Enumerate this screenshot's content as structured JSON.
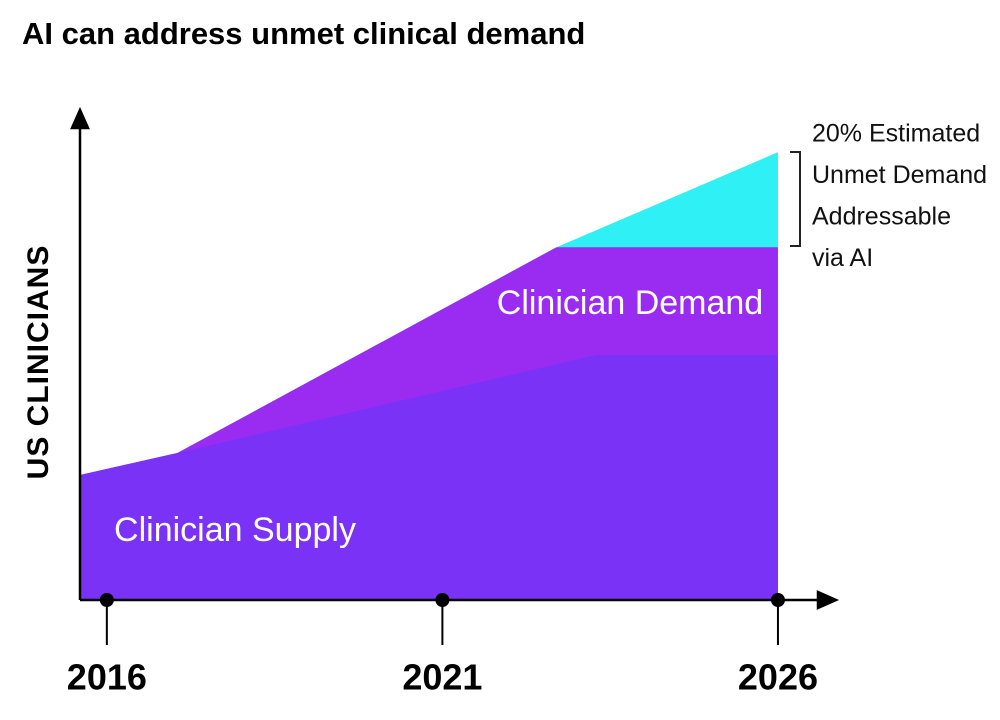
{
  "chart_data": {
    "type": "area",
    "title": "AI can address unmet clinical demand",
    "y_label": "US CLINICIANS",
    "x": [
      2015.6,
      2017.05,
      2022.7,
      2023.3,
      2026
    ],
    "xlim": [
      2015.6,
      2026.85
    ],
    "xticks": [
      2016,
      2021,
      2026
    ],
    "ylim": [
      0,
      100
    ],
    "series": [
      {
        "color": "#2ef0f5",
        "values": [
          25.5,
          30,
          72,
          75.5,
          91.4
        ]
      },
      {
        "name": "Clinician Demand",
        "color": "#9a2cf2",
        "values": [
          25.5,
          30,
          72,
          72,
          72
        ]
      },
      {
        "name": "Clinician Supply",
        "color": "#7a32f6",
        "values": [
          25.5,
          30,
          48.1,
          50,
          50
        ]
      }
    ],
    "annotation": [
      "20% Estimated",
      "Unmet Demand",
      "Addressable",
      "via AI"
    ]
  }
}
